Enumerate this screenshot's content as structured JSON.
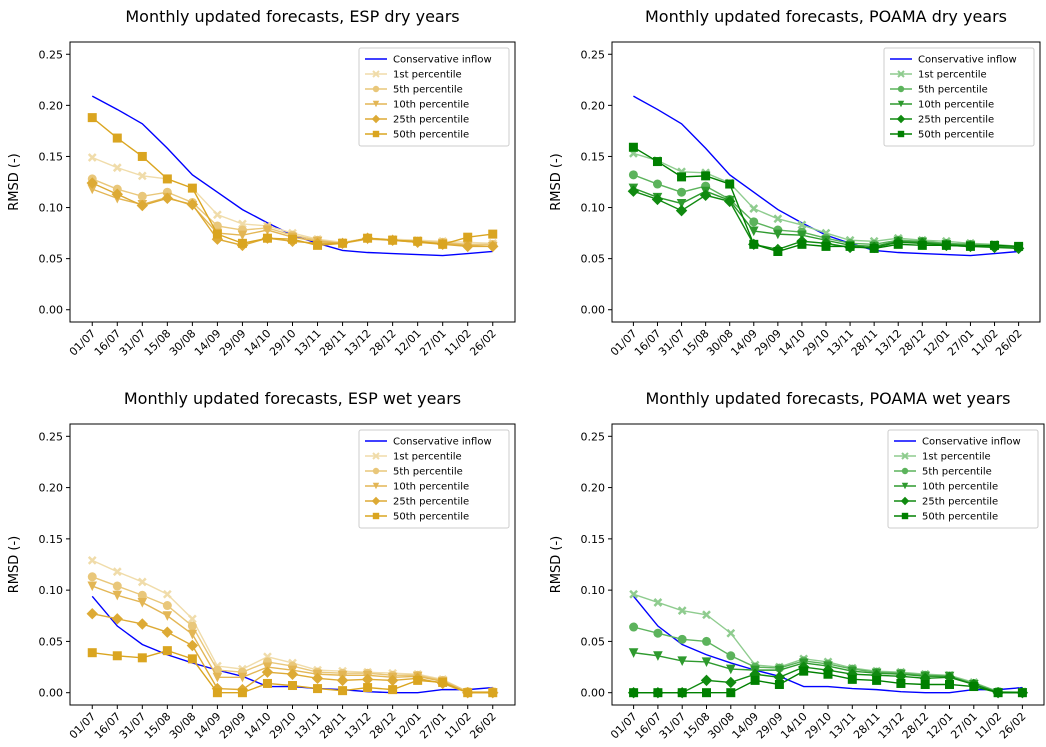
{
  "chart_data": [
    {
      "type": "line",
      "title": "Monthly updated forecasts, ESP dry years",
      "ylabel": "RMSD (-)",
      "categories": [
        "01/07",
        "16/07",
        "31/07",
        "15/08",
        "30/08",
        "14/09",
        "29/09",
        "14/10",
        "29/10",
        "13/11",
        "28/11",
        "13/12",
        "28/12",
        "12/01",
        "27/01",
        "11/02",
        "26/02"
      ],
      "ylim": [
        -0.012,
        0.262
      ],
      "yticks": [
        {
          "value": 0,
          "label": "0.00"
        },
        0.05,
        {
          "value": 0.1,
          "label": "0.10"
        },
        0.15,
        {
          "value": 0.2,
          "label": "0.20"
        },
        0.25
      ],
      "legend": "upper right",
      "series": [
        {
          "name": "Conservative inflow",
          "color": "#0000ff",
          "marker": "none",
          "values": [
            0.209,
            0.196,
            0.182,
            0.158,
            0.132,
            0.115,
            0.098,
            0.085,
            0.073,
            0.065,
            0.058,
            0.056,
            0.055,
            0.054,
            0.053,
            0.055,
            0.057
          ]
        },
        {
          "name": "1st percentile",
          "color": "#f0dcaa",
          "marker": "x",
          "values": [
            0.149,
            0.139,
            0.131,
            0.128,
            0.119,
            0.093,
            0.084,
            0.082,
            0.075,
            0.069,
            0.066,
            0.07,
            0.069,
            0.068,
            0.067,
            0.066,
            0.065
          ]
        },
        {
          "name": "5th percentile",
          "color": "#e9c77a",
          "marker": "circle",
          "values": [
            0.128,
            0.118,
            0.111,
            0.115,
            0.105,
            0.082,
            0.078,
            0.08,
            0.073,
            0.068,
            0.065,
            0.07,
            0.068,
            0.067,
            0.066,
            0.064,
            0.064
          ]
        },
        {
          "name": "10th percentile",
          "color": "#e3b655",
          "marker": "triangle",
          "values": [
            0.118,
            0.109,
            0.103,
            0.11,
            0.102,
            0.075,
            0.073,
            0.078,
            0.071,
            0.067,
            0.065,
            0.069,
            0.068,
            0.066,
            0.065,
            0.063,
            0.062
          ]
        },
        {
          "name": "25th percentile",
          "color": "#ddaa35",
          "marker": "diamond",
          "values": [
            0.124,
            0.113,
            0.102,
            0.109,
            0.103,
            0.069,
            0.063,
            0.07,
            0.067,
            0.065,
            0.065,
            0.07,
            0.068,
            0.066,
            0.064,
            0.062,
            0.062
          ]
        },
        {
          "name": "50th percentile",
          "color": "#daa520",
          "marker": "square",
          "values": [
            0.188,
            0.168,
            0.15,
            0.128,
            0.119,
            0.074,
            0.065,
            0.07,
            0.069,
            0.063,
            0.065,
            0.07,
            0.068,
            0.067,
            0.064,
            0.071,
            0.074
          ]
        }
      ]
    },
    {
      "type": "line",
      "title": "Monthly updated forecasts, POAMA dry years",
      "ylabel": "RMSD (-)",
      "categories": [
        "01/07",
        "16/07",
        "31/07",
        "15/08",
        "30/08",
        "14/09",
        "29/09",
        "14/10",
        "29/10",
        "13/11",
        "28/11",
        "13/12",
        "28/12",
        "12/01",
        "27/01",
        "11/02",
        "26/02"
      ],
      "ylim": [
        -0.012,
        0.262
      ],
      "yticks": [
        {
          "value": 0,
          "label": "0.00"
        },
        0.05,
        {
          "value": 0.1,
          "label": "0.10"
        },
        0.15,
        {
          "value": 0.2,
          "label": "0.20"
        },
        0.25
      ],
      "legend": "upper right",
      "series": [
        {
          "name": "Conservative inflow",
          "color": "#0000ff",
          "marker": "none",
          "values": [
            0.209,
            0.196,
            0.182,
            0.158,
            0.132,
            0.115,
            0.098,
            0.085,
            0.073,
            0.065,
            0.058,
            0.056,
            0.055,
            0.054,
            0.053,
            0.055,
            0.057
          ]
        },
        {
          "name": "1st percentile",
          "color": "#8fcc8f",
          "marker": "x",
          "values": [
            0.153,
            0.146,
            0.135,
            0.134,
            0.124,
            0.099,
            0.089,
            0.083,
            0.075,
            0.068,
            0.067,
            0.07,
            0.068,
            0.067,
            0.065,
            0.064,
            0.062
          ]
        },
        {
          "name": "5th percentile",
          "color": "#5cb35c",
          "marker": "circle",
          "values": [
            0.132,
            0.123,
            0.115,
            0.121,
            0.108,
            0.086,
            0.078,
            0.076,
            0.07,
            0.065,
            0.064,
            0.068,
            0.067,
            0.065,
            0.064,
            0.063,
            0.061
          ]
        },
        {
          "name": "10th percentile",
          "color": "#2e9a2e",
          "marker": "triangle",
          "values": [
            0.119,
            0.11,
            0.104,
            0.116,
            0.107,
            0.077,
            0.074,
            0.073,
            0.068,
            0.063,
            0.062,
            0.067,
            0.066,
            0.064,
            0.063,
            0.062,
            0.06
          ]
        },
        {
          "name": "25th percentile",
          "color": "#108a10",
          "marker": "diamond",
          "values": [
            0.116,
            0.108,
            0.097,
            0.112,
            0.106,
            0.064,
            0.059,
            0.067,
            0.065,
            0.061,
            0.061,
            0.066,
            0.065,
            0.063,
            0.062,
            0.061,
            0.06
          ]
        },
        {
          "name": "50th percentile",
          "color": "#008000",
          "marker": "square",
          "values": [
            0.159,
            0.145,
            0.13,
            0.131,
            0.123,
            0.064,
            0.057,
            0.064,
            0.062,
            0.062,
            0.06,
            0.064,
            0.063,
            0.063,
            0.062,
            0.063,
            0.062
          ]
        }
      ]
    },
    {
      "type": "line",
      "title": "Monthly updated forecasts, ESP wet years",
      "ylabel": "RMSD (-)",
      "categories": [
        "01/07",
        "16/07",
        "31/07",
        "15/08",
        "30/08",
        "14/09",
        "29/09",
        "14/10",
        "29/10",
        "13/11",
        "28/11",
        "13/12",
        "28/12",
        "12/01",
        "27/01",
        "11/02",
        "26/02"
      ],
      "ylim": [
        -0.012,
        0.262
      ],
      "yticks": [
        {
          "value": 0,
          "label": "0.00"
        },
        0.05,
        {
          "value": 0.1,
          "label": "0.10"
        },
        0.15,
        {
          "value": 0.2,
          "label": "0.20"
        },
        0.25
      ],
      "legend": "upper right",
      "series": [
        {
          "name": "Conservative inflow",
          "color": "#0000ff",
          "marker": "none",
          "values": [
            0.094,
            0.065,
            0.047,
            0.037,
            0.029,
            0.022,
            0.016,
            0.006,
            0.006,
            0.004,
            0.003,
            0.001,
            0.0,
            0.0,
            0.003,
            0.003,
            0.005
          ]
        },
        {
          "name": "1st percentile",
          "color": "#f0dcaa",
          "marker": "x",
          "values": [
            0.129,
            0.118,
            0.108,
            0.096,
            0.072,
            0.026,
            0.023,
            0.035,
            0.029,
            0.022,
            0.021,
            0.02,
            0.019,
            0.018,
            0.013,
            0.001,
            0.001
          ]
        },
        {
          "name": "5th percentile",
          "color": "#e9c77a",
          "marker": "circle",
          "values": [
            0.113,
            0.104,
            0.095,
            0.085,
            0.065,
            0.022,
            0.02,
            0.03,
            0.026,
            0.02,
            0.019,
            0.019,
            0.017,
            0.017,
            0.012,
            0.001,
            0.001
          ]
        },
        {
          "name": "10th percentile",
          "color": "#e3b655",
          "marker": "triangle",
          "values": [
            0.104,
            0.095,
            0.088,
            0.075,
            0.057,
            0.015,
            0.015,
            0.025,
            0.022,
            0.018,
            0.017,
            0.017,
            0.015,
            0.016,
            0.011,
            0.0,
            0.0
          ]
        },
        {
          "name": "25th percentile",
          "color": "#ddaa35",
          "marker": "diamond",
          "values": [
            0.077,
            0.072,
            0.067,
            0.059,
            0.046,
            0.004,
            0.003,
            0.02,
            0.018,
            0.014,
            0.012,
            0.013,
            0.012,
            0.014,
            0.009,
            0.0,
            0.0
          ]
        },
        {
          "name": "50th percentile",
          "color": "#daa520",
          "marker": "square",
          "values": [
            0.039,
            0.036,
            0.034,
            0.041,
            0.033,
            0.0,
            0.0,
            0.009,
            0.007,
            0.004,
            0.002,
            0.005,
            0.003,
            0.012,
            0.01,
            0.0,
            0.0
          ]
        }
      ]
    },
    {
      "type": "line",
      "title": "Monthly updated forecasts, POAMA wet years",
      "ylabel": "RMSD (-)",
      "categories": [
        "01/07",
        "16/07",
        "31/07",
        "15/08",
        "30/08",
        "14/09",
        "29/09",
        "14/10",
        "29/10",
        "13/11",
        "28/11",
        "13/12",
        "28/12",
        "12/01",
        "27/01",
        "11/02",
        "26/02"
      ],
      "ylim": [
        -0.012,
        0.262
      ],
      "yticks": [
        {
          "value": 0,
          "label": "0.00"
        },
        0.05,
        {
          "value": 0.1,
          "label": "0.10"
        },
        0.15,
        {
          "value": 0.2,
          "label": "0.20"
        },
        0.25
      ],
      "legend": "upper right",
      "series": [
        {
          "name": "Conservative inflow",
          "color": "#0000ff",
          "marker": "none",
          "values": [
            0.094,
            0.065,
            0.047,
            0.037,
            0.029,
            0.022,
            0.016,
            0.006,
            0.006,
            0.004,
            0.003,
            0.001,
            0.0,
            0.0,
            0.003,
            0.003,
            0.005
          ]
        },
        {
          "name": "1st percentile",
          "color": "#8fcc8f",
          "marker": "x",
          "values": [
            0.096,
            0.088,
            0.08,
            0.076,
            0.058,
            0.027,
            0.025,
            0.033,
            0.03,
            0.024,
            0.021,
            0.02,
            0.018,
            0.017,
            0.01,
            0.001,
            0.001
          ]
        },
        {
          "name": "5th percentile",
          "color": "#5cb35c",
          "marker": "circle",
          "values": [
            0.064,
            0.058,
            0.052,
            0.05,
            0.036,
            0.025,
            0.024,
            0.031,
            0.028,
            0.023,
            0.02,
            0.019,
            0.017,
            0.016,
            0.009,
            0.001,
            0.0
          ]
        },
        {
          "name": "10th percentile",
          "color": "#2e9a2e",
          "marker": "triangle",
          "values": [
            0.039,
            0.036,
            0.031,
            0.03,
            0.023,
            0.022,
            0.022,
            0.029,
            0.026,
            0.021,
            0.019,
            0.018,
            0.016,
            0.016,
            0.008,
            0.0,
            0.0
          ]
        },
        {
          "name": "25th percentile",
          "color": "#108a10",
          "marker": "diamond",
          "values": [
            0.0,
            0.0,
            0.0,
            0.012,
            0.01,
            0.018,
            0.015,
            0.025,
            0.022,
            0.018,
            0.017,
            0.016,
            0.014,
            0.015,
            0.008,
            0.0,
            0.0
          ]
        },
        {
          "name": "50th percentile",
          "color": "#008000",
          "marker": "square",
          "values": [
            0.0,
            0.0,
            0.0,
            0.0,
            0.0,
            0.012,
            0.008,
            0.021,
            0.018,
            0.013,
            0.012,
            0.009,
            0.008,
            0.008,
            0.006,
            0.0,
            0.0
          ]
        }
      ]
    }
  ]
}
